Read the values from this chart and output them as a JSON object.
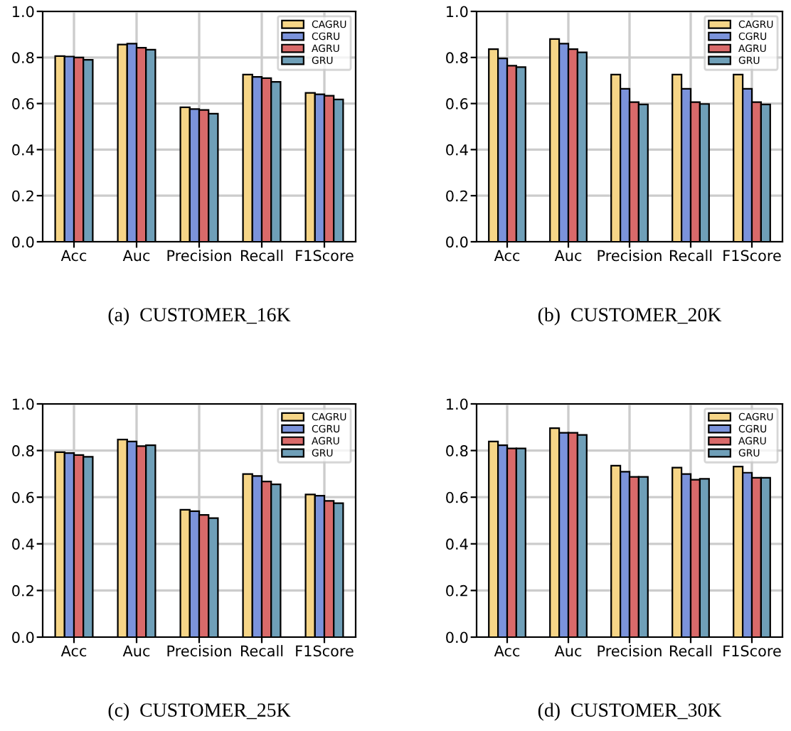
{
  "chart_data": [
    {
      "type": "bar",
      "xlabel": "(a)  CUSTOMER_16K",
      "categories": [
        "Acc",
        "Auc",
        "Precision",
        "Recall",
        "F1Score"
      ],
      "ylim": [
        0,
        1
      ],
      "yticks": [
        {
          "value": 0,
          "label": "0.0"
        },
        {
          "value": 0.2,
          "label": "0.2"
        },
        {
          "value": 0.4,
          "label": "0.4"
        },
        {
          "value": 0.6,
          "label": "0.6"
        },
        {
          "value": 0.8,
          "label": "0.8"
        },
        {
          "value": 1,
          "label": "1.0"
        }
      ],
      "grid": true,
      "legend": "top right",
      "series": [
        {
          "name": "CAGRU",
          "color": "#f6d587",
          "values": [
            0.806,
            0.856,
            0.584,
            0.726,
            0.646
          ]
        },
        {
          "name": "CGRU",
          "color": "#7b93db",
          "values": [
            0.804,
            0.86,
            0.576,
            0.716,
            0.64
          ]
        },
        {
          "name": "AGRU",
          "color": "#d96a6a",
          "values": [
            0.8,
            0.842,
            0.572,
            0.71,
            0.634
          ]
        },
        {
          "name": "GRU",
          "color": "#6f9fb8",
          "values": [
            0.79,
            0.834,
            0.556,
            0.694,
            0.618
          ]
        }
      ]
    },
    {
      "type": "bar",
      "xlabel": "(b)  CUSTOMER_20K",
      "categories": [
        "Acc",
        "Auc",
        "Precision",
        "Recall",
        "F1Score"
      ],
      "ylim": [
        0,
        1
      ],
      "yticks": [
        {
          "value": 0,
          "label": "0.0"
        },
        {
          "value": 0.2,
          "label": "0.2"
        },
        {
          "value": 0.4,
          "label": "0.4"
        },
        {
          "value": 0.6,
          "label": "0.6"
        },
        {
          "value": 0.8,
          "label": "0.8"
        },
        {
          "value": 1,
          "label": "1.0"
        }
      ],
      "grid": true,
      "legend": "top right",
      "series": [
        {
          "name": "CAGRU",
          "color": "#f6d587",
          "values": [
            0.836,
            0.88,
            0.726,
            0.726,
            0.726
          ]
        },
        {
          "name": "CGRU",
          "color": "#7b93db",
          "values": [
            0.796,
            0.86,
            0.664,
            0.664,
            0.664
          ]
        },
        {
          "name": "AGRU",
          "color": "#d96a6a",
          "values": [
            0.764,
            0.836,
            0.606,
            0.606,
            0.606
          ]
        },
        {
          "name": "GRU",
          "color": "#6f9fb8",
          "values": [
            0.758,
            0.822,
            0.596,
            0.598,
            0.596
          ]
        }
      ]
    },
    {
      "type": "bar",
      "xlabel": "(c)  CUSTOMER_25K",
      "categories": [
        "Acc",
        "Auc",
        "Precision",
        "Recall",
        "F1Score"
      ],
      "ylim": [
        0,
        1
      ],
      "yticks": [
        {
          "value": 0,
          "label": "0.0"
        },
        {
          "value": 0.2,
          "label": "0.2"
        },
        {
          "value": 0.4,
          "label": "0.4"
        },
        {
          "value": 0.6,
          "label": "0.6"
        },
        {
          "value": 0.8,
          "label": "0.8"
        },
        {
          "value": 1,
          "label": "1.0"
        }
      ],
      "grid": true,
      "legend": "top right",
      "series": [
        {
          "name": "CAGRU",
          "color": "#f6d587",
          "values": [
            0.793,
            0.847,
            0.546,
            0.699,
            0.612
          ]
        },
        {
          "name": "CGRU",
          "color": "#7b93db",
          "values": [
            0.789,
            0.839,
            0.54,
            0.691,
            0.606
          ]
        },
        {
          "name": "AGRU",
          "color": "#d96a6a",
          "values": [
            0.781,
            0.819,
            0.524,
            0.667,
            0.584
          ]
        },
        {
          "name": "GRU",
          "color": "#6f9fb8",
          "values": [
            0.773,
            0.823,
            0.51,
            0.655,
            0.574
          ]
        }
      ]
    },
    {
      "type": "bar",
      "xlabel": "(d)  CUSTOMER_30K",
      "categories": [
        "Acc",
        "Auc",
        "Precision",
        "Recall",
        "F1Score"
      ],
      "ylim": [
        0,
        1
      ],
      "yticks": [
        {
          "value": 0,
          "label": "0.0"
        },
        {
          "value": 0.2,
          "label": "0.2"
        },
        {
          "value": 0.4,
          "label": "0.4"
        },
        {
          "value": 0.6,
          "label": "0.6"
        },
        {
          "value": 0.8,
          "label": "0.8"
        },
        {
          "value": 1,
          "label": "1.0"
        }
      ],
      "grid": true,
      "legend": "top right",
      "series": [
        {
          "name": "CAGRU",
          "color": "#f6d587",
          "values": [
            0.839,
            0.896,
            0.735,
            0.727,
            0.731
          ]
        },
        {
          "name": "CGRU",
          "color": "#7b93db",
          "values": [
            0.823,
            0.876,
            0.709,
            0.699,
            0.705
          ]
        },
        {
          "name": "AGRU",
          "color": "#d96a6a",
          "values": [
            0.809,
            0.876,
            0.687,
            0.675,
            0.683
          ]
        },
        {
          "name": "GRU",
          "color": "#6f9fb8",
          "values": [
            0.809,
            0.867,
            0.687,
            0.679,
            0.683
          ]
        }
      ]
    }
  ]
}
